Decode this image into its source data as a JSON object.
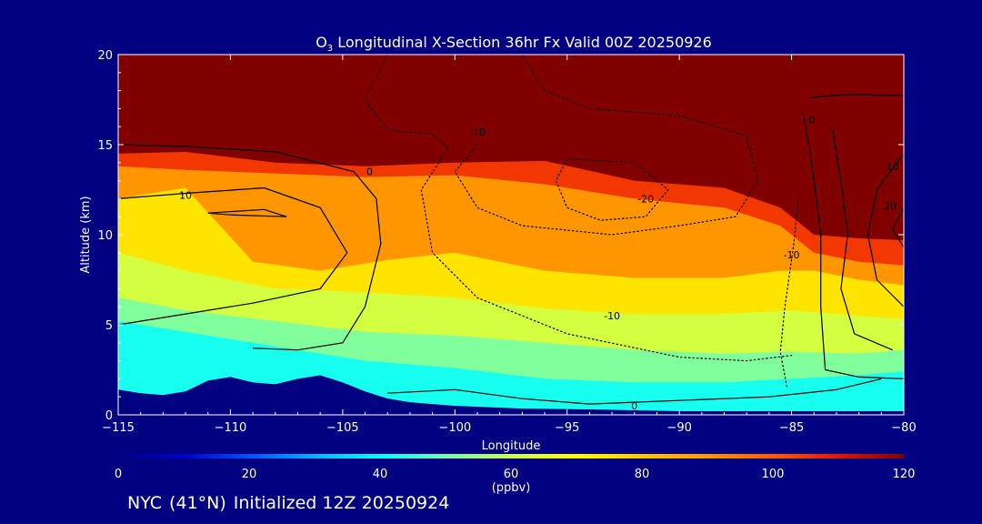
{
  "chart_data": {
    "type": "heatmap",
    "title_prefix": "O",
    "title_sub": "3",
    "title_rest": " Longitudinal X-Section 36hr  Fx Valid 00Z 20250926",
    "xlabel": "Longitude",
    "ylabel": "Altitude (km)",
    "xlim": [
      -115,
      -80
    ],
    "ylim": [
      0,
      20
    ],
    "x_ticks": [
      -115,
      -110,
      -105,
      -100,
      -95,
      -90,
      -85,
      -80
    ],
    "x_tick_labels": [
      "−115",
      "−110",
      "−105",
      "−100",
      "−95",
      "−90",
      "−85",
      "−80"
    ],
    "y_ticks": [
      0,
      5,
      10,
      15,
      20
    ],
    "y_tick_labels": [
      "0",
      "5",
      "10",
      "15",
      "20"
    ],
    "colorbar": {
      "min": 0,
      "max": 120,
      "ticks": [
        0,
        20,
        40,
        60,
        80,
        100,
        120
      ],
      "tick_labels": [
        "0",
        "20",
        "40",
        "60",
        "80",
        "100",
        "120"
      ],
      "units": "(ppbv)",
      "colors": [
        "#000080",
        "#0000c8",
        "#0050ff",
        "#00b4ff",
        "#00ffff",
        "#70ffb0",
        "#c8ff50",
        "#ffff00",
        "#ffc800",
        "#ff9600",
        "#ff5a00",
        "#e61400",
        "#800000"
      ]
    },
    "terrain_km": [
      {
        "lon": -115,
        "alt": 1.4
      },
      {
        "lon": -114,
        "alt": 1.2
      },
      {
        "lon": -113,
        "alt": 1.1
      },
      {
        "lon": -112,
        "alt": 1.3
      },
      {
        "lon": -111,
        "alt": 1.9
      },
      {
        "lon": -110,
        "alt": 2.1
      },
      {
        "lon": -109,
        "alt": 1.8
      },
      {
        "lon": -108,
        "alt": 1.7
      },
      {
        "lon": -107,
        "alt": 2.0
      },
      {
        "lon": -106,
        "alt": 2.2
      },
      {
        "lon": -105,
        "alt": 1.8
      },
      {
        "lon": -104,
        "alt": 1.3
      },
      {
        "lon": -103,
        "alt": 0.9
      },
      {
        "lon": -102,
        "alt": 0.7
      },
      {
        "lon": -100,
        "alt": 0.5
      },
      {
        "lon": -97,
        "alt": 0.35
      },
      {
        "lon": -94,
        "alt": 0.3
      },
      {
        "lon": -90,
        "alt": 0.2
      },
      {
        "lon": -85,
        "alt": 0.2
      },
      {
        "lon": -82,
        "alt": 0.2
      },
      {
        "lon": -80,
        "alt": 0.2
      }
    ],
    "ozone_bands": [
      {
        "name": "stratospheric",
        "value": 120,
        "top": [
          {
            "lon": -115,
            "alt": 20
          },
          {
            "lon": -80,
            "alt": 20
          }
        ],
        "base": [
          {
            "lon": -115,
            "alt": 14.5
          },
          {
            "lon": -112,
            "alt": 14.6
          },
          {
            "lon": -108,
            "alt": 14.0
          },
          {
            "lon": -104,
            "alt": 13.8
          },
          {
            "lon": -100,
            "alt": 14.0
          },
          {
            "lon": -96,
            "alt": 14.1
          },
          {
            "lon": -92,
            "alt": 13.0
          },
          {
            "lon": -88,
            "alt": 12.6
          },
          {
            "lon": -85.5,
            "alt": 11.5
          },
          {
            "lon": -84,
            "alt": 10.0
          },
          {
            "lon": -82,
            "alt": 9.8
          },
          {
            "lon": -80,
            "alt": 9.7
          }
        ]
      },
      {
        "name": "red_transition",
        "value": 105,
        "base": [
          {
            "lon": -115,
            "alt": 13.8
          },
          {
            "lon": -112,
            "alt": 13.6
          },
          {
            "lon": -108,
            "alt": 13.4
          },
          {
            "lon": -104,
            "alt": 13.2
          },
          {
            "lon": -100,
            "alt": 13.3
          },
          {
            "lon": -96,
            "alt": 12.8
          },
          {
            "lon": -92,
            "alt": 12.0
          },
          {
            "lon": -88,
            "alt": 11.5
          },
          {
            "lon": -85.5,
            "alt": 10.5
          },
          {
            "lon": -84,
            "alt": 9.0
          },
          {
            "lon": -82,
            "alt": 8.5
          },
          {
            "lon": -80,
            "alt": 8.3
          }
        ]
      },
      {
        "name": "orange_upper",
        "value": 90,
        "base": [
          {
            "lon": -115,
            "alt": 12.0
          },
          {
            "lon": -112,
            "alt": 12.6
          },
          {
            "lon": -109,
            "alt": 8.5
          },
          {
            "lon": -106,
            "alt": 8.0
          },
          {
            "lon": -103,
            "alt": 8.6
          },
          {
            "lon": -100,
            "alt": 9.0
          },
          {
            "lon": -96,
            "alt": 8.0
          },
          {
            "lon": -92,
            "alt": 7.6
          },
          {
            "lon": -88,
            "alt": 7.6
          },
          {
            "lon": -85.5,
            "alt": 8.0
          },
          {
            "lon": -84,
            "alt": 8.0
          },
          {
            "lon": -82,
            "alt": 7.5
          },
          {
            "lon": -80,
            "alt": 7.2
          }
        ]
      },
      {
        "name": "yellow_orange",
        "value": 75,
        "base": [
          {
            "lon": -115,
            "alt": 9.0
          },
          {
            "lon": -112,
            "alt": 8.0
          },
          {
            "lon": -108,
            "alt": 7.0
          },
          {
            "lon": -104,
            "alt": 6.8
          },
          {
            "lon": -100,
            "alt": 6.5
          },
          {
            "lon": -96,
            "alt": 5.9
          },
          {
            "lon": -92,
            "alt": 5.6
          },
          {
            "lon": -88,
            "alt": 5.6
          },
          {
            "lon": -85,
            "alt": 5.8
          },
          {
            "lon": -82,
            "alt": 5.5
          },
          {
            "lon": -80,
            "alt": 5.3
          }
        ]
      },
      {
        "name": "yellow_green",
        "value": 62,
        "base": [
          {
            "lon": -115,
            "alt": 6.5
          },
          {
            "lon": -112,
            "alt": 5.8
          },
          {
            "lon": -108,
            "alt": 5.2
          },
          {
            "lon": -104,
            "alt": 4.6
          },
          {
            "lon": -100,
            "alt": 4.4
          },
          {
            "lon": -96,
            "alt": 4.0
          },
          {
            "lon": -92,
            "alt": 3.6
          },
          {
            "lon": -88,
            "alt": 3.4
          },
          {
            "lon": -85,
            "alt": 3.5
          },
          {
            "lon": -82,
            "alt": 3.4
          },
          {
            "lon": -80,
            "alt": 3.6
          }
        ]
      },
      {
        "name": "green",
        "value": 52,
        "base": [
          {
            "lon": -115,
            "alt": 5.2
          },
          {
            "lon": -112,
            "alt": 4.6
          },
          {
            "lon": -108,
            "alt": 3.8
          },
          {
            "lon": -104,
            "alt": 3.0
          },
          {
            "lon": -100,
            "alt": 2.6
          },
          {
            "lon": -96,
            "alt": 2.0
          },
          {
            "lon": -92,
            "alt": 1.8
          },
          {
            "lon": -88,
            "alt": 1.8
          },
          {
            "lon": -85,
            "alt": 2.0
          },
          {
            "lon": -82,
            "alt": 2.2
          },
          {
            "lon": -80,
            "alt": 2.4
          }
        ]
      },
      {
        "name": "cyan",
        "value": 42,
        "base": [
          {
            "lon": -115,
            "alt": 0
          },
          {
            "lon": -80,
            "alt": 0
          }
        ]
      }
    ],
    "contours": [
      {
        "label": "0",
        "style": "solid",
        "label_at": {
          "lon": -103.8,
          "alt": 13.5
        },
        "points": [
          {
            "lon": -115,
            "alt": 15.0
          },
          {
            "lon": -112,
            "alt": 14.9
          },
          {
            "lon": -108,
            "alt": 14.6
          },
          {
            "lon": -104.5,
            "alt": 13.5
          },
          {
            "lon": -103.5,
            "alt": 12.0
          },
          {
            "lon": -103.3,
            "alt": 9.5
          },
          {
            "lon": -104,
            "alt": 6.0
          },
          {
            "lon": -105,
            "alt": 4.0
          },
          {
            "lon": -107,
            "alt": 3.6
          },
          {
            "lon": -109,
            "alt": 3.7
          }
        ]
      },
      {
        "label": "10",
        "style": "solid",
        "label_at": {
          "lon": -112,
          "alt": 12.2
        },
        "points": [
          {
            "lon": -115,
            "alt": 12.0
          },
          {
            "lon": -112,
            "alt": 12.3
          },
          {
            "lon": -108.5,
            "alt": 12.6
          },
          {
            "lon": -106,
            "alt": 11.5
          },
          {
            "lon": -104.8,
            "alt": 9.0
          },
          {
            "lon": -106,
            "alt": 7.0
          },
          {
            "lon": -109,
            "alt": 6.2
          },
          {
            "lon": -112,
            "alt": 5.6
          },
          {
            "lon": -115,
            "alt": 5.0
          }
        ]
      },
      {
        "label": "",
        "style": "solid",
        "label_at": null,
        "points": [
          {
            "lon": -111,
            "alt": 11.2
          },
          {
            "lon": -108.5,
            "alt": 11.4
          },
          {
            "lon": -107.5,
            "alt": 11.0
          },
          {
            "lon": -110,
            "alt": 11.1
          },
          {
            "lon": -111,
            "alt": 11.2
          }
        ]
      },
      {
        "label": "0",
        "style": "solid",
        "label_at": {
          "lon": -92,
          "alt": 0.5
        },
        "points": [
          {
            "lon": -103,
            "alt": 1.2
          },
          {
            "lon": -100,
            "alt": 1.4
          },
          {
            "lon": -97,
            "alt": 0.9
          },
          {
            "lon": -94,
            "alt": 0.6
          },
          {
            "lon": -90,
            "alt": 0.8
          },
          {
            "lon": -86,
            "alt": 1.0
          },
          {
            "lon": -83,
            "alt": 1.4
          },
          {
            "lon": -81,
            "alt": 2.0
          }
        ]
      },
      {
        "label": "-10",
        "style": "dotted",
        "label_at": {
          "lon": -99,
          "alt": 15.7
        },
        "points": [
          {
            "lon": -103,
            "alt": 20
          },
          {
            "lon": -104,
            "alt": 17.5
          },
          {
            "lon": -103,
            "alt": 15.8
          },
          {
            "lon": -101,
            "alt": 15.6
          },
          {
            "lon": -100.3,
            "alt": 14.8
          },
          {
            "lon": -101.5,
            "alt": 12.5
          },
          {
            "lon": -101,
            "alt": 9.0
          },
          {
            "lon": -99,
            "alt": 6.5
          },
          {
            "lon": -95,
            "alt": 4.5
          },
          {
            "lon": -90,
            "alt": 3.2
          },
          {
            "lon": -87,
            "alt": 3.0
          },
          {
            "lon": -85,
            "alt": 3.3
          }
        ]
      },
      {
        "label": "-10",
        "style": "dotted",
        "label_at": {
          "lon": -93,
          "alt": 5.5
        },
        "points": [
          {
            "lon": -97,
            "alt": 20
          },
          {
            "lon": -96,
            "alt": 18.0
          },
          {
            "lon": -94,
            "alt": 17.0
          },
          {
            "lon": -90,
            "alt": 16.6
          },
          {
            "lon": -87,
            "alt": 15.5
          },
          {
            "lon": -86.5,
            "alt": 13.0
          },
          {
            "lon": -87.5,
            "alt": 11.0
          },
          {
            "lon": -90,
            "alt": 10.5
          },
          {
            "lon": -93,
            "alt": 10.0
          },
          {
            "lon": -97,
            "alt": 10.5
          },
          {
            "lon": -99,
            "alt": 11.5
          },
          {
            "lon": -100,
            "alt": 13.5
          },
          {
            "lon": -99,
            "alt": 15.0
          }
        ]
      },
      {
        "label": "-20",
        "style": "dotted",
        "label_at": {
          "lon": -91.5,
          "alt": 12.0
        },
        "points": [
          {
            "lon": -95,
            "alt": 14.2
          },
          {
            "lon": -92,
            "alt": 14.0
          },
          {
            "lon": -90.5,
            "alt": 12.5
          },
          {
            "lon": -91.5,
            "alt": 11.0
          },
          {
            "lon": -93.5,
            "alt": 10.8
          },
          {
            "lon": -95,
            "alt": 11.5
          },
          {
            "lon": -95.5,
            "alt": 13.0
          },
          {
            "lon": -95,
            "alt": 14.2
          }
        ]
      },
      {
        "label": "-10",
        "style": "dotted",
        "label_at": {
          "lon": -85,
          "alt": 8.9
        },
        "points": [
          {
            "lon": -84.7,
            "alt": 12.0
          },
          {
            "lon": -84.9,
            "alt": 9.5
          },
          {
            "lon": -85.3,
            "alt": 6.0
          },
          {
            "lon": -85.5,
            "alt": 3.5
          },
          {
            "lon": -85.2,
            "alt": 1.5
          }
        ]
      },
      {
        "label": "0",
        "style": "solid",
        "label_at": {
          "lon": -84.1,
          "alt": 16.4
        },
        "points": [
          {
            "lon": -84.5,
            "alt": 16.8
          },
          {
            "lon": -84.3,
            "alt": 15.5
          },
          {
            "lon": -84.0,
            "alt": 13.0
          },
          {
            "lon": -83.7,
            "alt": 10.0
          },
          {
            "lon": -83.7,
            "alt": 6.0
          },
          {
            "lon": -83.5,
            "alt": 2.5
          },
          {
            "lon": -82,
            "alt": 2.1
          },
          {
            "lon": -80,
            "alt": 2.0
          }
        ]
      },
      {
        "label": "",
        "style": "solid",
        "label_at": null,
        "points": [
          {
            "lon": -84.2,
            "alt": 17.6
          },
          {
            "lon": -82.5,
            "alt": 17.8
          },
          {
            "lon": -80,
            "alt": 17.7
          }
        ]
      },
      {
        "label": "10",
        "style": "solid",
        "label_at": {
          "lon": -80.5,
          "alt": 13.8
        },
        "points": [
          {
            "lon": -83.2,
            "alt": 16.0
          },
          {
            "lon": -82.8,
            "alt": 13.0
          },
          {
            "lon": -82.5,
            "alt": 10.0
          },
          {
            "lon": -82.8,
            "alt": 7.0
          },
          {
            "lon": -82.2,
            "alt": 4.5
          },
          {
            "lon": -80.5,
            "alt": 3.6
          }
        ]
      },
      {
        "label": "20",
        "style": "solid",
        "label_at": {
          "lon": -80.6,
          "alt": 11.6
        },
        "points": [
          {
            "lon": -80,
            "alt": 14.5
          },
          {
            "lon": -81.2,
            "alt": 12.5
          },
          {
            "lon": -81.6,
            "alt": 10.0
          },
          {
            "lon": -81.2,
            "alt": 7.5
          },
          {
            "lon": -80,
            "alt": 6.0
          }
        ]
      },
      {
        "label": "",
        "style": "solid",
        "label_at": null,
        "points": [
          {
            "lon": -80,
            "alt": 11.5
          },
          {
            "lon": -80.5,
            "alt": 10.3
          },
          {
            "lon": -80,
            "alt": 9.3
          }
        ]
      }
    ]
  },
  "footer": {
    "station": "NYC",
    "latitude": "(41°N)",
    "initialized": "Initialized 12Z 20250924"
  }
}
